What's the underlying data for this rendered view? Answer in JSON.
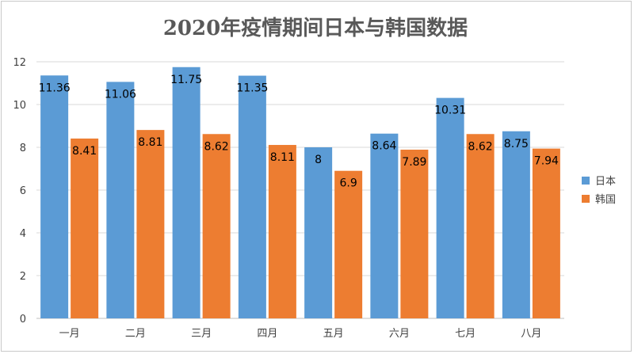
{
  "chart_data": {
    "type": "bar",
    "title": "2020年疫情期间日本与韩国数据",
    "xlabel": "",
    "ylabel": "",
    "categories": [
      "一月",
      "二月",
      "三月",
      "四月",
      "五月",
      "六月",
      "七月",
      "八月"
    ],
    "series": [
      {
        "name": "日本",
        "color": "#5b9bd5",
        "values": [
          11.36,
          11.06,
          11.75,
          11.35,
          8,
          8.64,
          10.31,
          8.75
        ]
      },
      {
        "name": "韩国",
        "color": "#ed7d31",
        "values": [
          8.41,
          8.81,
          8.62,
          8.11,
          6.9,
          7.89,
          8.62,
          7.94
        ]
      }
    ],
    "ylim": [
      0,
      12
    ],
    "yticks": [
      0,
      2,
      4,
      6,
      8,
      10,
      12
    ],
    "grid": true,
    "legend": "right"
  }
}
